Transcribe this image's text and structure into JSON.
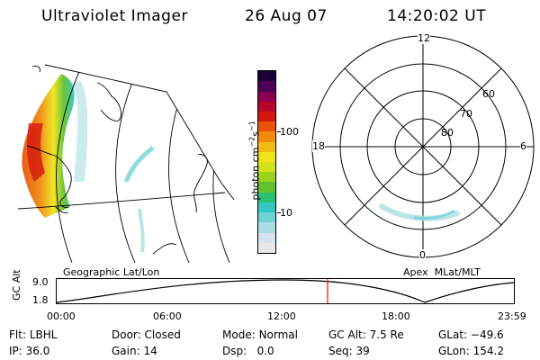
{
  "header": {
    "instrument": "Ultraviolet Imager",
    "date": "26 Aug 07",
    "time": "14:20:02 UT"
  },
  "colorbar": {
    "label": "photon cm",
    "label_sup1": "−2",
    "label_mid": "s",
    "label_sup2": "−1",
    "ticks": [
      "100",
      "10"
    ],
    "colors": [
      "#e8e8e8",
      "#d3e4ee",
      "#a9dde2",
      "#6fd3d8",
      "#37c7c2",
      "#2ec070",
      "#62c232",
      "#9cd31d",
      "#d2e21a",
      "#efe41a",
      "#f2bb14",
      "#f08b0f",
      "#e9520c",
      "#d4170f",
      "#b5082a",
      "#890050",
      "#4c0056",
      "#1a0038"
    ]
  },
  "geo_map": {
    "label": "Geographic Lat/Lon"
  },
  "polar_map": {
    "label": "Apex  MLat/MLT",
    "mlt_labels": {
      "top": "12",
      "left": "18",
      "right": "6",
      "bottom": "0"
    },
    "lat_labels": [
      "60",
      "70",
      "80"
    ]
  },
  "orbit": {
    "axis_title": "GC Alt",
    "y_labels": [
      "9.0",
      "1.8"
    ],
    "x_labels": [
      "00:00",
      "06:00",
      "12:00",
      "18:00",
      "23:59"
    ]
  },
  "info": {
    "filter": {
      "label": "Flt:",
      "value": "LBHL"
    },
    "ip": {
      "label": "IP:",
      "value": "36.0"
    },
    "door": {
      "label": "Door:",
      "value": "Closed"
    },
    "gain": {
      "label": "Gain:",
      "value": "14"
    },
    "mode": {
      "label": "Mode:",
      "value": "Normal"
    },
    "dsp": {
      "label": "Dsp:",
      "value": "0.0"
    },
    "gc_alt": {
      "label": "GC Alt:",
      "value": "7.5 Re"
    },
    "seq": {
      "label": "Seq:",
      "value": "39"
    },
    "glat": {
      "label": "GLat:",
      "value": "−49.6"
    },
    "glon": {
      "label": "GLon:",
      "value": "154.2"
    }
  },
  "colors": {
    "marker": "#e81010",
    "line": "#000000"
  }
}
